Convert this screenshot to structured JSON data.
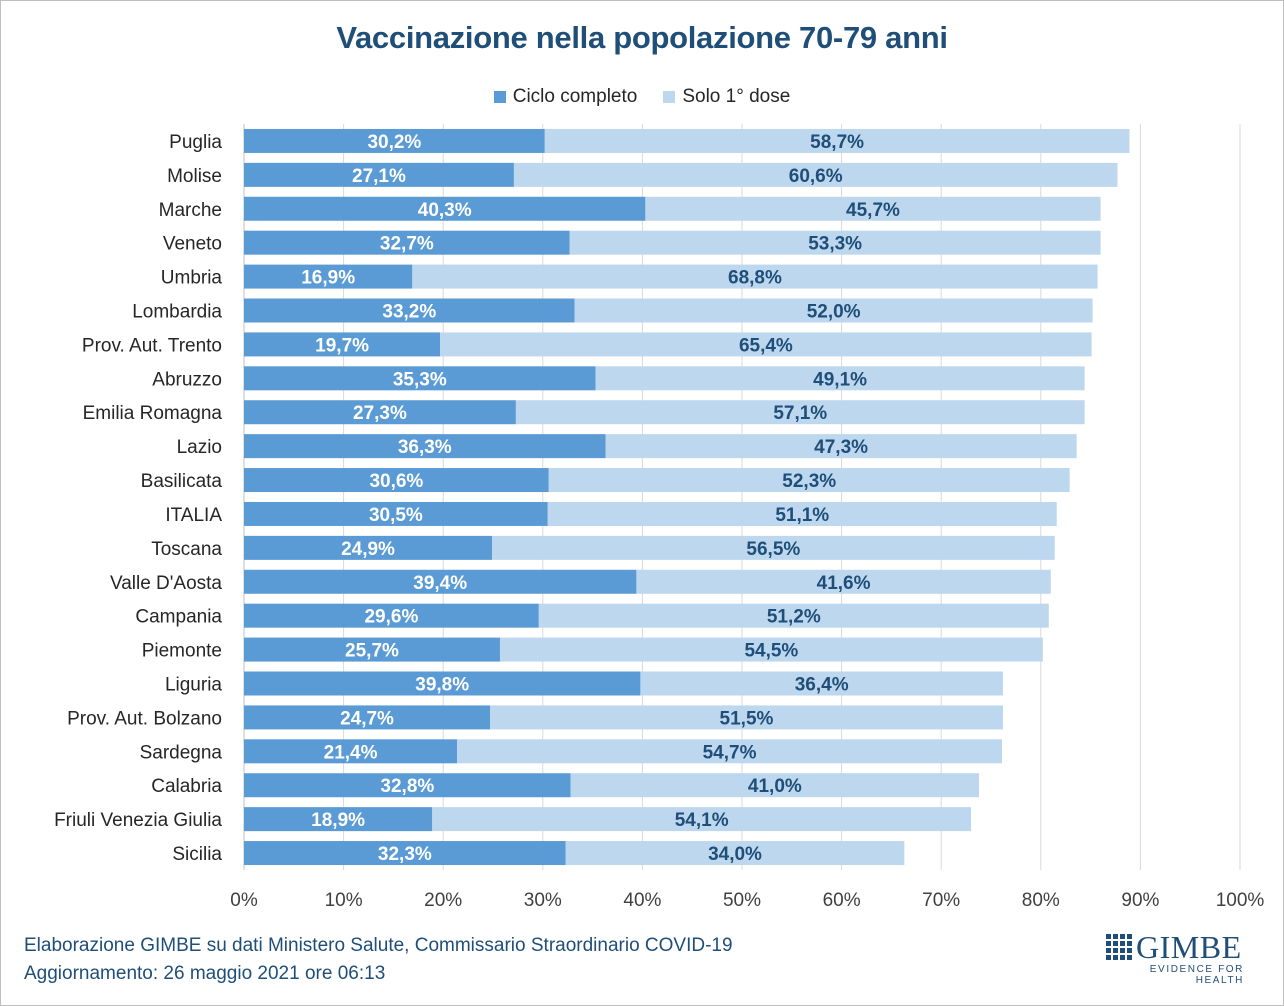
{
  "title": "Vaccinazione nella popolazione 70-79 anni",
  "legend": [
    {
      "label": "Ciclo completo",
      "color": "#5b9bd5"
    },
    {
      "label": "Solo 1° dose",
      "color": "#bdd7ee"
    }
  ],
  "footer": {
    "line1": "Elaborazione GIMBE su dati Ministero Salute, Commissario Straordinario COVID-19",
    "line2": "Aggiornamento: 26 maggio 2021 ore 06:13"
  },
  "logo": {
    "name": "GIMBE",
    "tagline": "EVIDENCE FOR HEALTH"
  },
  "chart_data": {
    "type": "bar",
    "orientation": "horizontal",
    "stacked": true,
    "title": "Vaccinazione nella popolazione 70-79 anni",
    "xlim": [
      0,
      100
    ],
    "x_ticks": [
      "0%",
      "10%",
      "20%",
      "30%",
      "40%",
      "50%",
      "60%",
      "70%",
      "80%",
      "90%",
      "100%"
    ],
    "grid": true,
    "legend_position": "top",
    "categories": [
      "Puglia",
      "Molise",
      "Marche",
      "Veneto",
      "Umbria",
      "Lombardia",
      "Prov. Aut. Trento",
      "Abruzzo",
      "Emilia Romagna",
      "Lazio",
      "Basilicata",
      "ITALIA",
      "Toscana",
      "Valle D'Aosta",
      "Campania",
      "Piemonte",
      "Liguria",
      "Prov. Aut. Bolzano",
      "Sardegna",
      "Calabria",
      "Friuli Venezia Giulia",
      "Sicilia"
    ],
    "series": [
      {
        "name": "Ciclo completo",
        "color": "#5b9bd5",
        "values": [
          30.2,
          27.1,
          40.3,
          32.7,
          16.9,
          33.2,
          19.7,
          35.3,
          27.3,
          36.3,
          30.6,
          30.5,
          24.9,
          39.4,
          29.6,
          25.7,
          39.8,
          24.7,
          21.4,
          32.8,
          18.9,
          32.3
        ],
        "labels": [
          "30,2%",
          "27,1%",
          "40,3%",
          "32,7%",
          "16,9%",
          "33,2%",
          "19,7%",
          "35,3%",
          "27,3%",
          "36,3%",
          "30,6%",
          "30,5%",
          "24,9%",
          "39,4%",
          "29,6%",
          "25,7%",
          "39,8%",
          "24,7%",
          "21,4%",
          "32,8%",
          "18,9%",
          "32,3%"
        ]
      },
      {
        "name": "Solo 1° dose",
        "color": "#bdd7ee",
        "values": [
          58.7,
          60.6,
          45.7,
          53.3,
          68.8,
          52.0,
          65.4,
          49.1,
          57.1,
          47.3,
          52.3,
          51.1,
          56.5,
          41.6,
          51.2,
          54.5,
          36.4,
          51.5,
          54.7,
          41.0,
          54.1,
          34.0
        ],
        "labels": [
          "58,7%",
          "60,6%",
          "45,7%",
          "53,3%",
          "68,8%",
          "52,0%",
          "65,4%",
          "49,1%",
          "57,1%",
          "47,3%",
          "52,3%",
          "51,1%",
          "56,5%",
          "41,6%",
          "51,2%",
          "54,5%",
          "36,4%",
          "51,5%",
          "54,7%",
          "41,0%",
          "54,1%",
          "34,0%"
        ]
      }
    ]
  }
}
